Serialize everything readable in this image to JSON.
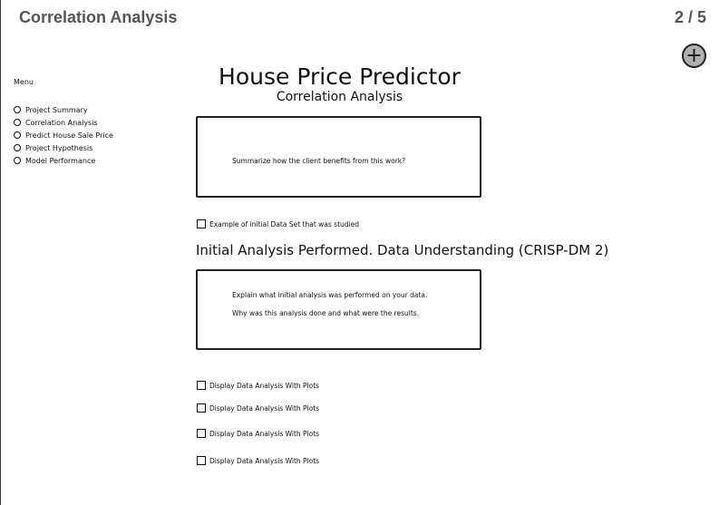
{
  "header": {
    "page_title": "Correlation Analysis",
    "page_count": "2 / 5",
    "add_symbol": "+"
  },
  "sidebar": {
    "menu_label": "Menu",
    "items": [
      {
        "label": "Project Summary"
      },
      {
        "label": "Correlation Analysis"
      },
      {
        "label": "Predict House Sale Price"
      },
      {
        "label": "Project Hypothesis"
      },
      {
        "label": "Model Performance"
      }
    ]
  },
  "main": {
    "app_title": "House Price Predictor",
    "app_subtitle": "Correlation Analysis",
    "summary_box": {
      "text": "Summarize how the client benefits from this work?"
    },
    "dataset_checkbox": "Example of initial Data Set that was studied",
    "section_heading": "Initial Analysis Performed. Data Understanding (CRISP-DM 2)",
    "analysis_box": {
      "line1": "Explain what initial analysis was performed on your data.",
      "line2": "Why was this analysis done and what were the results."
    },
    "plot_checkboxes": [
      {
        "label": "Display Data Analysis With Plots"
      },
      {
        "label": "Display Data Analysis With Plots"
      },
      {
        "label": "Display Data Analysis With Plots"
      },
      {
        "label": "Display Data Analysis With Plots"
      }
    ]
  }
}
